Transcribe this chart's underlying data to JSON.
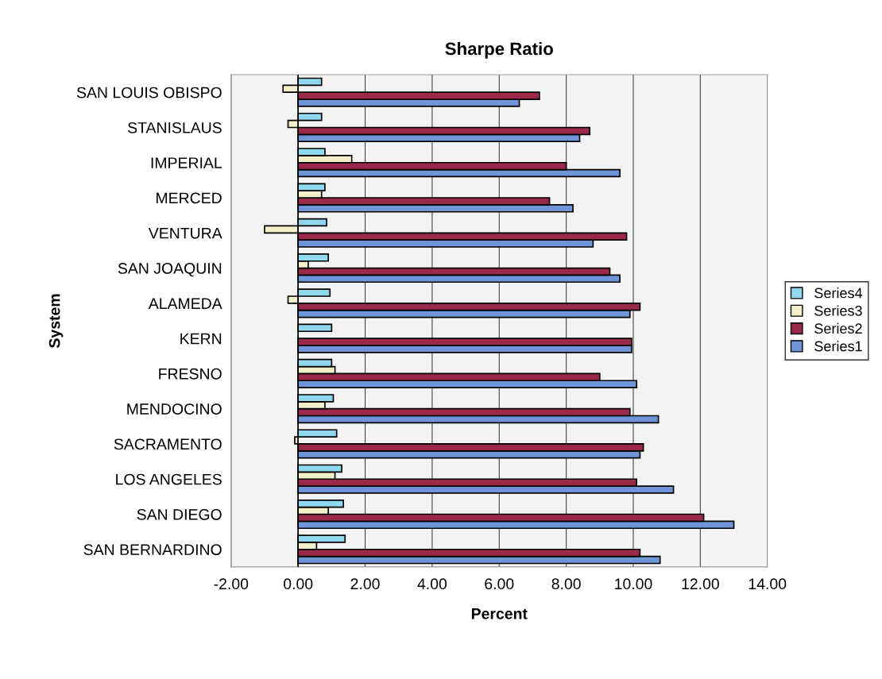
{
  "chart_data": {
    "type": "bar",
    "orientation": "horizontal",
    "title": "Sharpe Ratio",
    "xlabel": "Percent",
    "ylabel": "System",
    "categories": [
      "SAN LOUIS OBISPO",
      "STANISLAUS",
      "IMPERIAL",
      "MERCED",
      "VENTURA",
      "SAN JOAQUIN",
      "ALAMEDA",
      "KERN",
      "FRESNO",
      "MENDOCINO",
      "SACRAMENTO",
      "LOS ANGELES",
      "SAN DIEGO",
      "SAN BERNARDINO"
    ],
    "series": [
      {
        "name": "Series1",
        "color": "#6f94d8",
        "values": [
          6.6,
          8.4,
          9.6,
          8.2,
          8.8,
          9.6,
          9.9,
          9.95,
          10.1,
          10.75,
          10.2,
          11.2,
          13.0,
          10.8
        ]
      },
      {
        "name": "Series2",
        "color": "#9b2a4a",
        "values": [
          7.2,
          8.7,
          8.0,
          7.5,
          9.8,
          9.3,
          10.2,
          9.95,
          9.0,
          9.9,
          10.3,
          10.1,
          12.1,
          10.2
        ]
      },
      {
        "name": "Series3",
        "color": "#f3efc8",
        "values": [
          -0.45,
          -0.3,
          1.6,
          0.7,
          -1.0,
          0.3,
          -0.3,
          null,
          1.1,
          0.8,
          -0.1,
          1.1,
          0.9,
          0.55
        ]
      },
      {
        "name": "Series4",
        "color": "#8fd8ee",
        "values": [
          0.7,
          0.7,
          0.8,
          0.8,
          0.85,
          0.9,
          0.95,
          1.0,
          1.0,
          1.05,
          1.15,
          1.3,
          1.35,
          1.4
        ]
      }
    ],
    "xlim": [
      -2,
      14
    ],
    "xticks": [
      {
        "value": -2,
        "label": "-2.00"
      },
      {
        "value": 0,
        "label": "0.00"
      },
      {
        "value": 2,
        "label": "2.00"
      },
      {
        "value": 4,
        "label": "4.00"
      },
      {
        "value": 6,
        "label": "6.00"
      },
      {
        "value": 8,
        "label": "8.00"
      },
      {
        "value": 10,
        "label": "10.00"
      },
      {
        "value": 12,
        "label": "12.00"
      },
      {
        "value": 14,
        "label": "14.00"
      }
    ],
    "grid": "x",
    "legend": "right"
  }
}
